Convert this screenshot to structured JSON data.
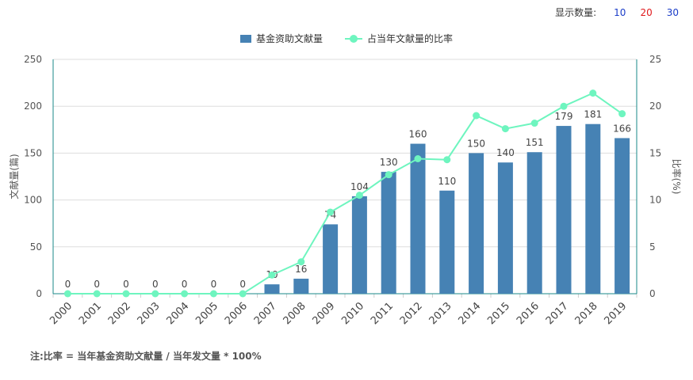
{
  "display_count": {
    "label": "显示数量:",
    "options": [
      {
        "text": "10",
        "color": "#1a3cc8"
      },
      {
        "text": "20",
        "color": "#e0191c"
      },
      {
        "text": "30",
        "color": "#1a3cc8"
      }
    ]
  },
  "note": "注:比率 = 当年基金资助文献量 / 当年发文量 * 100%",
  "colors": {
    "bar": "#4682b4",
    "line": "#6ef5bf",
    "axis": "#1a8a8a",
    "grid": "#dddddd"
  },
  "chart_data": {
    "type": "bar",
    "categories": [
      "2000",
      "2001",
      "2002",
      "2003",
      "2004",
      "2005",
      "2006",
      "2007",
      "2008",
      "2009",
      "2010",
      "2011",
      "2012",
      "2013",
      "2014",
      "2015",
      "2016",
      "2017",
      "2018",
      "2019"
    ],
    "series": [
      {
        "name": "基金资助文献量",
        "type": "bar",
        "axis": "left",
        "values": [
          0,
          0,
          0,
          0,
          0,
          0,
          0,
          10,
          16,
          74,
          104,
          130,
          160,
          110,
          150,
          140,
          151,
          179,
          181,
          166
        ]
      },
      {
        "name": "占当年文献量的比率",
        "type": "line",
        "axis": "right",
        "values": [
          0,
          0,
          0,
          0,
          0,
          0,
          0,
          2.0,
          3.4,
          8.7,
          10.5,
          12.7,
          14.4,
          14.3,
          19.0,
          17.6,
          18.2,
          20.0,
          21.4,
          19.2
        ]
      }
    ],
    "ylabel": "文献量(篇)",
    "y2label": "比率(%)",
    "ylim": [
      0,
      250
    ],
    "y2lim": [
      0,
      25
    ],
    "yticks": [
      0,
      50,
      100,
      150,
      200,
      250
    ],
    "y2ticks": [
      0,
      5,
      10,
      15,
      20,
      25
    ],
    "grid": true,
    "legend": "top-center"
  }
}
